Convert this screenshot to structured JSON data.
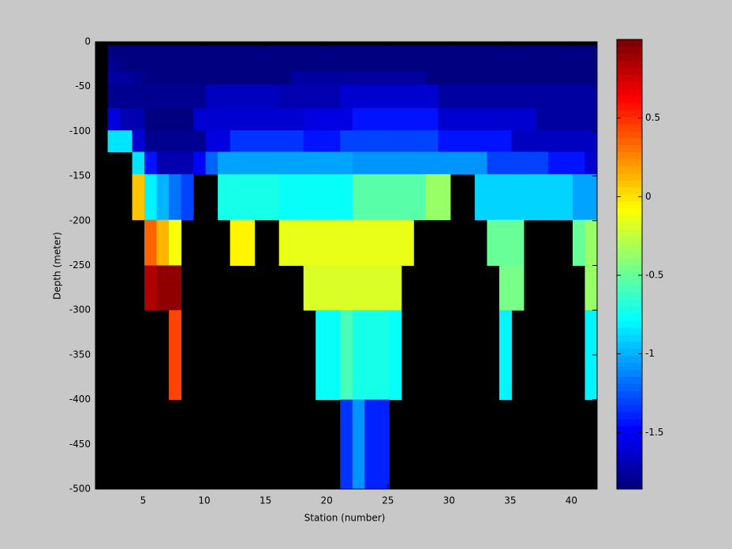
{
  "chart_data": {
    "type": "heatmap",
    "xlabel": "Station (number)",
    "ylabel": "Depth (meter)",
    "colormap": "jet",
    "x": [
      1.1,
      2.1,
      3.1,
      4.1,
      5.1,
      6.1,
      7.1,
      8.1,
      9.1,
      10.1,
      11.1,
      12.1,
      13.1,
      14.1,
      15.1,
      16.1,
      17.1,
      18.1,
      19.1,
      20.1,
      21.1,
      22.1,
      23.1,
      24.1,
      25.1,
      26.1,
      27.1,
      28.1,
      29.1,
      30.1,
      31.1,
      32.1,
      33.1,
      34.1,
      35.1,
      36.1,
      37.1,
      38.1,
      39.1,
      40.1,
      41.1,
      42.1
    ],
    "y": [
      0,
      -4,
      -18,
      -33,
      -48,
      -74,
      -99,
      -123,
      -148,
      -199,
      -250,
      -300,
      -400,
      -500
    ],
    "z": [
      [
        null,
        null,
        null,
        null,
        null,
        null,
        null,
        null,
        null,
        null,
        null,
        null,
        null,
        null,
        null,
        null,
        null,
        null,
        null,
        null,
        null,
        null,
        null,
        null,
        null,
        null,
        null,
        null,
        null,
        null,
        null,
        null,
        null,
        null,
        null,
        null,
        null,
        null,
        null,
        null,
        null
      ],
      [
        null,
        -1.85,
        -1.85,
        -1.85,
        -1.85,
        -1.85,
        -1.85,
        -1.85,
        -1.85,
        -1.85,
        -1.85,
        -1.85,
        -1.85,
        -1.85,
        -1.85,
        -1.85,
        -1.85,
        -1.85,
        -1.85,
        -1.85,
        -1.85,
        -1.85,
        -1.85,
        -1.85,
        -1.85,
        -1.85,
        -1.85,
        -1.85,
        -1.85,
        -1.85,
        -1.85,
        -1.85,
        -1.85,
        -1.85,
        -1.85,
        -1.85,
        -1.85,
        -1.85,
        -1.85,
        -1.85,
        -1.85
      ],
      [
        null,
        -1.8,
        -1.85,
        -1.85,
        -1.85,
        -1.85,
        -1.85,
        -1.85,
        -1.85,
        -1.85,
        -1.85,
        -1.85,
        -1.85,
        -1.85,
        -1.85,
        -1.85,
        -1.85,
        -1.85,
        -1.85,
        -1.85,
        -1.85,
        -1.85,
        -1.85,
        -1.85,
        -1.85,
        -1.85,
        -1.85,
        -1.85,
        -1.85,
        -1.85,
        -1.85,
        -1.85,
        -1.85,
        -1.85,
        -1.85,
        -1.85,
        -1.85,
        -1.85,
        -1.85,
        -1.85,
        -1.85
      ],
      [
        null,
        -1.75,
        -1.75,
        -1.8,
        -1.82,
        -1.82,
        -1.82,
        -1.82,
        -1.82,
        -1.82,
        -1.82,
        -1.82,
        -1.82,
        -1.82,
        -1.82,
        -1.82,
        -1.75,
        -1.75,
        -1.75,
        -1.75,
        -1.75,
        -1.75,
        -1.75,
        -1.75,
        -1.75,
        -1.75,
        -1.75,
        -1.82,
        -1.82,
        -1.82,
        -1.82,
        -1.82,
        -1.82,
        -1.82,
        -1.82,
        -1.82,
        -1.82,
        -1.82,
        -1.82,
        -1.82,
        -1.82
      ],
      [
        null,
        -1.8,
        -1.8,
        -1.8,
        -1.8,
        -1.8,
        -1.8,
        -1.8,
        -1.8,
        -1.65,
        -1.65,
        -1.65,
        -1.65,
        -1.65,
        -1.65,
        -1.7,
        -1.7,
        -1.7,
        -1.7,
        -1.7,
        -1.6,
        -1.6,
        -1.6,
        -1.6,
        -1.6,
        -1.6,
        -1.6,
        -1.6,
        -1.75,
        -1.75,
        -1.75,
        -1.75,
        -1.75,
        -1.75,
        -1.75,
        -1.75,
        -1.75,
        -1.75,
        -1.75,
        -1.75,
        -1.75
      ],
      [
        null,
        -1.55,
        -1.7,
        -1.7,
        -1.85,
        -1.85,
        -1.85,
        -1.85,
        -1.6,
        -1.6,
        -1.6,
        -1.6,
        -1.6,
        -1.6,
        -1.6,
        -1.6,
        -1.6,
        -1.55,
        -1.55,
        -1.55,
        -1.55,
        -1.45,
        -1.45,
        -1.45,
        -1.45,
        -1.45,
        -1.45,
        -1.45,
        -1.6,
        -1.6,
        -1.6,
        -1.6,
        -1.6,
        -1.6,
        -1.6,
        -1.6,
        -1.75,
        -1.75,
        -1.75,
        -1.75,
        -1.75
      ],
      [
        null,
        -0.85,
        -0.85,
        -1.6,
        -1.8,
        -1.8,
        -1.8,
        -1.8,
        -1.8,
        -1.55,
        -1.55,
        -1.35,
        -1.35,
        -1.35,
        -1.35,
        -1.35,
        -1.35,
        -1.45,
        -1.45,
        -1.45,
        -1.3,
        -1.3,
        -1.3,
        -1.3,
        -1.3,
        -1.3,
        -1.3,
        -1.3,
        -1.45,
        -1.45,
        -1.45,
        -1.45,
        -1.45,
        -1.45,
        -1.65,
        -1.65,
        -1.65,
        -1.65,
        -1.65,
        -1.65,
        -1.65
      ],
      [
        null,
        null,
        null,
        -0.85,
        -1.45,
        -1.7,
        -1.7,
        -1.7,
        -1.5,
        -1.2,
        -1.05,
        -1.05,
        -1.05,
        -1.05,
        -1.05,
        -1.05,
        -1.05,
        -1.05,
        -1.05,
        -1.05,
        -1.05,
        -1.1,
        -1.1,
        -1.1,
        -1.1,
        -1.1,
        -1.1,
        -1.1,
        -1.1,
        -1.1,
        -1.1,
        -1.1,
        -1.3,
        -1.3,
        -1.3,
        -1.3,
        -1.3,
        -1.45,
        -1.45,
        -1.45,
        -1.6
      ],
      [
        null,
        null,
        null,
        0.1,
        -0.8,
        -1.0,
        -1.15,
        -1.3,
        null,
        null,
        -0.7,
        -0.7,
        -0.7,
        -0.7,
        -0.7,
        -0.75,
        -0.75,
        -0.75,
        -0.75,
        -0.75,
        -0.75,
        -0.55,
        -0.55,
        -0.55,
        -0.55,
        -0.55,
        -0.55,
        -0.35,
        -0.35,
        null,
        null,
        -0.9,
        -0.9,
        -0.9,
        -0.9,
        -0.9,
        -0.9,
        -0.9,
        -0.9,
        -1.05,
        -1.05
      ],
      [
        null,
        null,
        null,
        null,
        0.35,
        0.15,
        -0.1,
        null,
        null,
        null,
        null,
        -0.05,
        -0.05,
        null,
        null,
        -0.15,
        -0.15,
        -0.15,
        -0.15,
        -0.15,
        -0.15,
        -0.15,
        -0.15,
        -0.15,
        -0.15,
        -0.15,
        null,
        null,
        null,
        null,
        null,
        null,
        -0.5,
        -0.5,
        -0.5,
        null,
        null,
        null,
        null,
        -0.5,
        -0.35
      ],
      [
        null,
        null,
        null,
        null,
        0.85,
        0.95,
        0.95,
        null,
        null,
        null,
        null,
        null,
        null,
        null,
        null,
        null,
        null,
        -0.2,
        -0.2,
        -0.2,
        -0.2,
        -0.2,
        -0.2,
        -0.2,
        -0.2,
        null,
        null,
        null,
        null,
        null,
        null,
        null,
        null,
        -0.45,
        -0.45,
        null,
        null,
        null,
        null,
        null,
        -0.35
      ],
      [
        null,
        null,
        null,
        null,
        null,
        null,
        0.45,
        null,
        null,
        null,
        null,
        null,
        null,
        null,
        null,
        null,
        null,
        null,
        -0.75,
        -0.75,
        -0.6,
        -0.7,
        -0.7,
        -0.7,
        -0.75,
        null,
        null,
        null,
        null,
        null,
        null,
        null,
        null,
        -0.8,
        null,
        null,
        null,
        null,
        null,
        null,
        -0.8
      ],
      [
        null,
        null,
        null,
        null,
        null,
        null,
        null,
        null,
        null,
        null,
        null,
        null,
        null,
        null,
        null,
        null,
        null,
        null,
        null,
        null,
        -1.35,
        -1.1,
        -1.4,
        -1.4,
        null,
        null,
        null,
        null,
        null,
        null,
        null,
        null,
        null,
        null,
        null,
        null,
        null,
        null,
        null,
        null,
        null
      ]
    ],
    "xlim": [
      1.1,
      42.1
    ],
    "xticks": [
      5,
      10,
      15,
      20,
      25,
      30,
      35,
      40
    ],
    "ylim": [
      -500,
      0
    ],
    "yticks": [
      0,
      -50,
      -100,
      -150,
      -200,
      -250,
      -300,
      -350,
      -400,
      -450,
      -500
    ],
    "clim": [
      -1.86,
      1.0
    ],
    "cticks": [
      0.5,
      0,
      -0.5,
      -1,
      -1.5
    ]
  }
}
